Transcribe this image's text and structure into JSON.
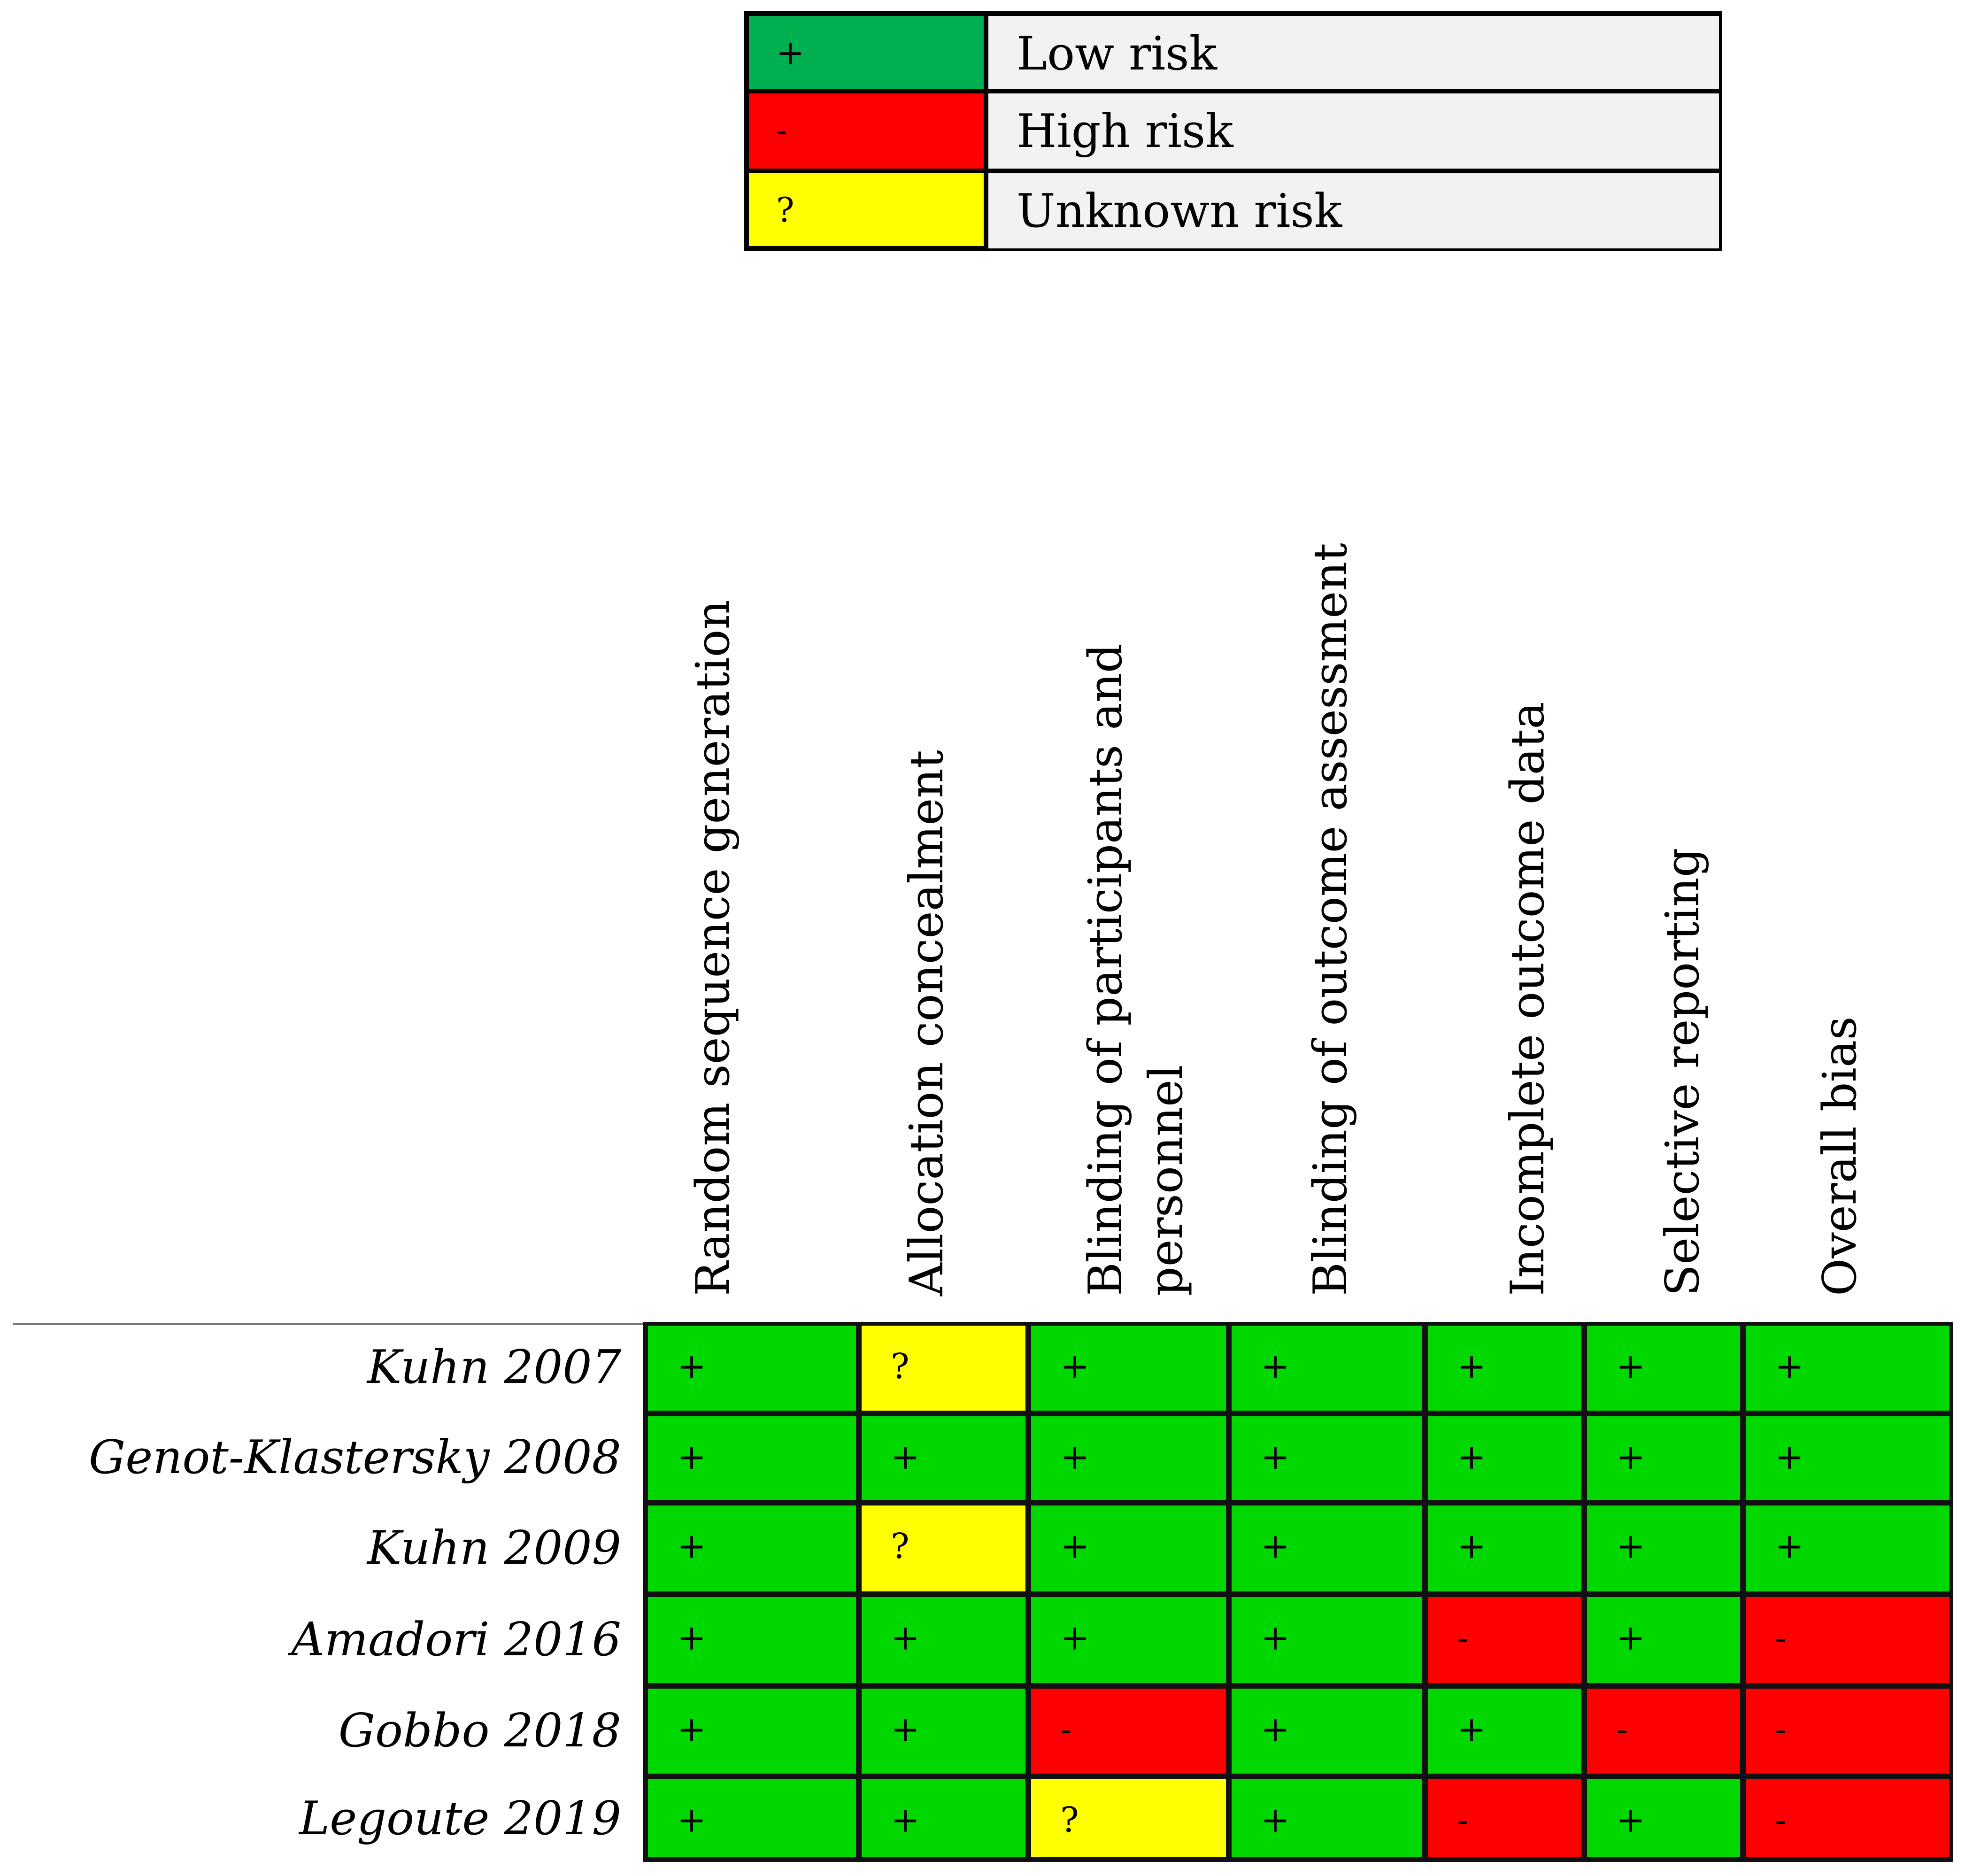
{
  "legend": [
    {
      "symbol": "+",
      "label": "Low risk",
      "color": "#00b050"
    },
    {
      "symbol": "-",
      "label": "High risk",
      "color": "#ff0000"
    },
    {
      "symbol": "?",
      "label": "Unknown risk",
      "color": "#ffff00"
    }
  ],
  "colors": {
    "+": "#00d800",
    "-": "#ff0000",
    "?": "#ffff00"
  },
  "chart_data": {
    "type": "table",
    "columns": [
      "Random sequence generation",
      "Allocation concealment",
      "Blinding of participants and personnel",
      "Blinding of outcome assessment",
      "Incomplete outcome data",
      "Selective reporting",
      "Overall bias"
    ],
    "header_lines": [
      [
        "Random sequence generation"
      ],
      [
        "Allocation concealment"
      ],
      [
        "Blinding of participants and",
        "personnel"
      ],
      [
        "Blinding of outcome assessment"
      ],
      [
        "Incomplete outcome data"
      ],
      [
        "Selective reporting"
      ],
      [
        "Overall bias"
      ]
    ],
    "rows": [
      {
        "study": "Kuhn 2007",
        "values": [
          "+",
          "?",
          "+",
          "+",
          "+",
          "+",
          "+"
        ]
      },
      {
        "study": "Genot-Klastersky 2008",
        "values": [
          "+",
          "+",
          "+",
          "+",
          "+",
          "+",
          "+"
        ]
      },
      {
        "study": "Kuhn 2009",
        "values": [
          "+",
          "?",
          "+",
          "+",
          "+",
          "+",
          "+"
        ]
      },
      {
        "study": "Amadori 2016",
        "values": [
          "+",
          "+",
          "+",
          "+",
          "-",
          "+",
          "-"
        ]
      },
      {
        "study": "Gobbo 2018",
        "values": [
          "+",
          "+",
          "-",
          "+",
          "+",
          "-",
          "-"
        ]
      },
      {
        "study": "Legoute 2019",
        "values": [
          "+",
          "+",
          "?",
          "+",
          "-",
          "+",
          "-"
        ]
      }
    ]
  }
}
